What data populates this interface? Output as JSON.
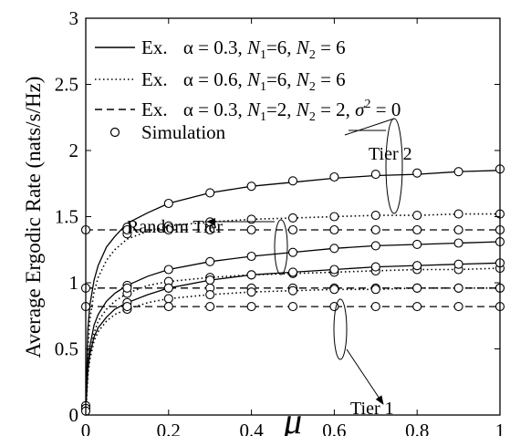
{
  "chart_data": {
    "type": "line",
    "xlabel": "μ",
    "ylabel": "Average Ergodic Rate (nats/s/Hz)",
    "xlim": [
      0,
      1
    ],
    "ylim": [
      0,
      3
    ],
    "x_ticks": [
      "0",
      "0.2",
      "0.4",
      "0.6",
      "0.8",
      "1"
    ],
    "y_ticks": [
      "0",
      "0.5",
      "1",
      "1.5",
      "2",
      "2.5",
      "3"
    ],
    "grid": false,
    "legend_position": "top-left",
    "legend": [
      {
        "style": "solid",
        "prefix": "Ex.",
        "alpha": "0.3",
        "n1": "6",
        "n2": "6",
        "sigma": ""
      },
      {
        "style": "dotted",
        "prefix": "Ex.",
        "alpha": "0.6",
        "n1": "6",
        "n2": "6",
        "sigma": ""
      },
      {
        "style": "dashed",
        "prefix": "Ex.",
        "alpha": "0.3",
        "n1": "2",
        "n2": "2",
        "sigma": "0"
      },
      {
        "style": "marker",
        "label": "Simulation"
      }
    ],
    "annotations": [
      "Tier 2",
      "Random Tier",
      "Tier 1"
    ],
    "series": [
      {
        "style": "solid",
        "group": "Tier 2",
        "x": [
          0,
          0.005,
          0.01,
          0.02,
          0.03,
          0.05,
          0.07,
          0.1,
          0.15,
          0.2,
          0.3,
          0.4,
          0.5,
          0.6,
          0.7,
          0.8,
          0.9,
          1.0
        ],
        "y": [
          0.03,
          0.65,
          0.83,
          1.02,
          1.13,
          1.27,
          1.35,
          1.45,
          1.53,
          1.6,
          1.68,
          1.73,
          1.76,
          1.79,
          1.81,
          1.82,
          1.84,
          1.85
        ]
      },
      {
        "style": "dotted",
        "group": "Tier 2",
        "x": [
          0,
          0.005,
          0.01,
          0.02,
          0.03,
          0.05,
          0.07,
          0.1,
          0.15,
          0.2,
          0.3,
          0.4,
          0.5,
          0.6,
          0.7,
          0.8,
          0.9,
          1.0
        ],
        "y": [
          0.02,
          0.5,
          0.72,
          0.93,
          1.04,
          1.17,
          1.25,
          1.33,
          1.39,
          1.43,
          1.46,
          1.48,
          1.49,
          1.5,
          1.51,
          1.51,
          1.52,
          1.52
        ]
      },
      {
        "style": "dashed",
        "group": "Tier 2",
        "x": [
          0,
          1
        ],
        "y": [
          1.4,
          1.4
        ]
      },
      {
        "style": "solid",
        "group": "Random Tier",
        "x": [
          0,
          0.005,
          0.01,
          0.02,
          0.03,
          0.05,
          0.07,
          0.1,
          0.15,
          0.2,
          0.3,
          0.4,
          0.5,
          0.6,
          0.7,
          0.8,
          0.9,
          1.0
        ],
        "y": [
          0.03,
          0.38,
          0.52,
          0.68,
          0.76,
          0.86,
          0.92,
          0.98,
          1.05,
          1.1,
          1.16,
          1.2,
          1.23,
          1.26,
          1.28,
          1.29,
          1.3,
          1.31
        ]
      },
      {
        "style": "dotted",
        "group": "Random Tier",
        "x": [
          0,
          0.005,
          0.01,
          0.02,
          0.03,
          0.05,
          0.07,
          0.1,
          0.15,
          0.2,
          0.3,
          0.4,
          0.5,
          0.6,
          0.7,
          0.8,
          0.9,
          1.0
        ],
        "y": [
          0.02,
          0.32,
          0.46,
          0.62,
          0.71,
          0.8,
          0.86,
          0.92,
          0.98,
          1.01,
          1.04,
          1.06,
          1.07,
          1.08,
          1.09,
          1.1,
          1.1,
          1.11
        ]
      },
      {
        "style": "dashed",
        "group": "Random Tier",
        "x": [
          0,
          1
        ],
        "y": [
          0.96,
          0.96
        ]
      },
      {
        "style": "solid",
        "group": "Tier 1",
        "x": [
          0,
          0.005,
          0.01,
          0.02,
          0.03,
          0.05,
          0.07,
          0.1,
          0.15,
          0.2,
          0.3,
          0.4,
          0.5,
          0.6,
          0.7,
          0.8,
          0.9,
          1.0
        ],
        "y": [
          0.03,
          0.34,
          0.46,
          0.59,
          0.66,
          0.74,
          0.8,
          0.85,
          0.91,
          0.96,
          1.02,
          1.06,
          1.08,
          1.1,
          1.12,
          1.13,
          1.14,
          1.15
        ]
      },
      {
        "style": "dotted",
        "group": "Tier 1",
        "x": [
          0,
          0.005,
          0.01,
          0.02,
          0.03,
          0.05,
          0.07,
          0.1,
          0.15,
          0.2,
          0.3,
          0.4,
          0.5,
          0.6,
          0.7,
          0.8,
          0.9,
          1.0
        ],
        "y": [
          0.02,
          0.3,
          0.42,
          0.56,
          0.63,
          0.71,
          0.76,
          0.8,
          0.85,
          0.88,
          0.91,
          0.93,
          0.94,
          0.95,
          0.95,
          0.96,
          0.96,
          0.96
        ]
      },
      {
        "style": "dashed",
        "group": "Tier 1",
        "x": [
          0,
          1
        ],
        "y": [
          0.82,
          0.82
        ]
      }
    ],
    "simulation": {
      "x": [
        0.1,
        0.2,
        0.3,
        0.4,
        0.5,
        0.6,
        0.7,
        0.8,
        0.9,
        1.0
      ],
      "y": [
        [
          1.42,
          1.6,
          1.68,
          1.73,
          1.77,
          1.8,
          1.82,
          1.83,
          1.84,
          1.86
        ],
        [
          1.37,
          1.43,
          1.46,
          1.48,
          1.49,
          1.5,
          1.51,
          1.51,
          1.52,
          1.52
        ],
        [
          1.4,
          1.4,
          1.4,
          1.4,
          1.4,
          1.4,
          1.4,
          1.4,
          1.4,
          1.4
        ],
        [
          0.98,
          1.1,
          1.16,
          1.2,
          1.23,
          1.26,
          1.28,
          1.29,
          1.3,
          1.31
        ],
        [
          0.92,
          1.01,
          1.04,
          1.06,
          1.07,
          1.08,
          1.09,
          1.1,
          1.1,
          1.11
        ],
        [
          0.96,
          0.96,
          0.96,
          0.96,
          0.96,
          0.96,
          0.96,
          0.96,
          0.96,
          0.96
        ],
        [
          0.85,
          0.96,
          1.02,
          1.06,
          1.08,
          1.1,
          1.12,
          1.13,
          1.14,
          1.15
        ],
        [
          0.8,
          0.88,
          0.91,
          0.93,
          0.94,
          0.95,
          0.95,
          0.96,
          0.96,
          0.96
        ],
        [
          0.82,
          0.82,
          0.82,
          0.82,
          0.82,
          0.82,
          0.82,
          0.82,
          0.82,
          0.82
        ]
      ],
      "x0": 0,
      "y0": [
        1.4,
        0.96,
        0.82,
        0.07,
        0.05,
        0.03
      ]
    }
  }
}
